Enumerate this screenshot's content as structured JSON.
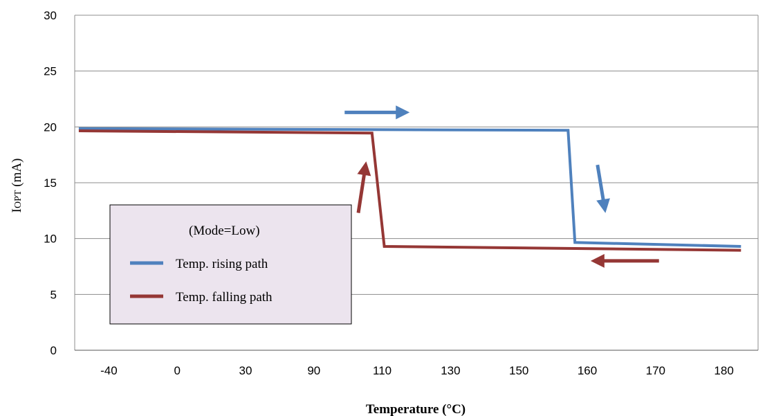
{
  "chart_data": {
    "type": "line",
    "categories": [
      "-40",
      "0",
      "30",
      "90",
      "110",
      "130",
      "150",
      "160",
      "170",
      "180"
    ],
    "xlabel": "Temperature (°C)",
    "ylabel_main": "I",
    "ylabel_sub": "OPT",
    "ylabel_unit": "(mA)",
    "ylim": [
      0,
      30
    ],
    "yticks": [
      0,
      5,
      10,
      15,
      20,
      25,
      30
    ],
    "grid": true,
    "legend": {
      "placement": "center-left",
      "title": "(Mode=Low)",
      "background": "#ece4ee"
    },
    "series": [
      {
        "name": "Temp. rising path",
        "color": "#4f81bd",
        "points": [
          [
            -0.44,
            19.85
          ],
          [
            6.72,
            19.7
          ],
          [
            6.82,
            9.65
          ],
          [
            9.25,
            9.3
          ]
        ]
      },
      {
        "name": "Temp. falling path",
        "color": "#953735",
        "points": [
          [
            -0.44,
            19.65
          ],
          [
            3.85,
            19.45
          ],
          [
            4.03,
            9.3
          ],
          [
            9.25,
            8.95
          ]
        ]
      }
    ],
    "annotations": [
      {
        "name": "rising-right-arrow",
        "color": "#4f81bd",
        "from": [
          3.45,
          21.3
        ],
        "to": [
          4.3,
          21.3
        ]
      },
      {
        "name": "rising-down-arrow",
        "color": "#4f81bd",
        "from": [
          7.15,
          16.6
        ],
        "to": [
          7.25,
          12.9
        ]
      },
      {
        "name": "falling-left-arrow",
        "color": "#953735",
        "from": [
          8.05,
          8.0
        ],
        "to": [
          7.15,
          8.0
        ]
      },
      {
        "name": "falling-up-arrow",
        "color": "#953735",
        "from": [
          3.65,
          12.3
        ],
        "to": [
          3.75,
          16.3
        ]
      }
    ]
  }
}
